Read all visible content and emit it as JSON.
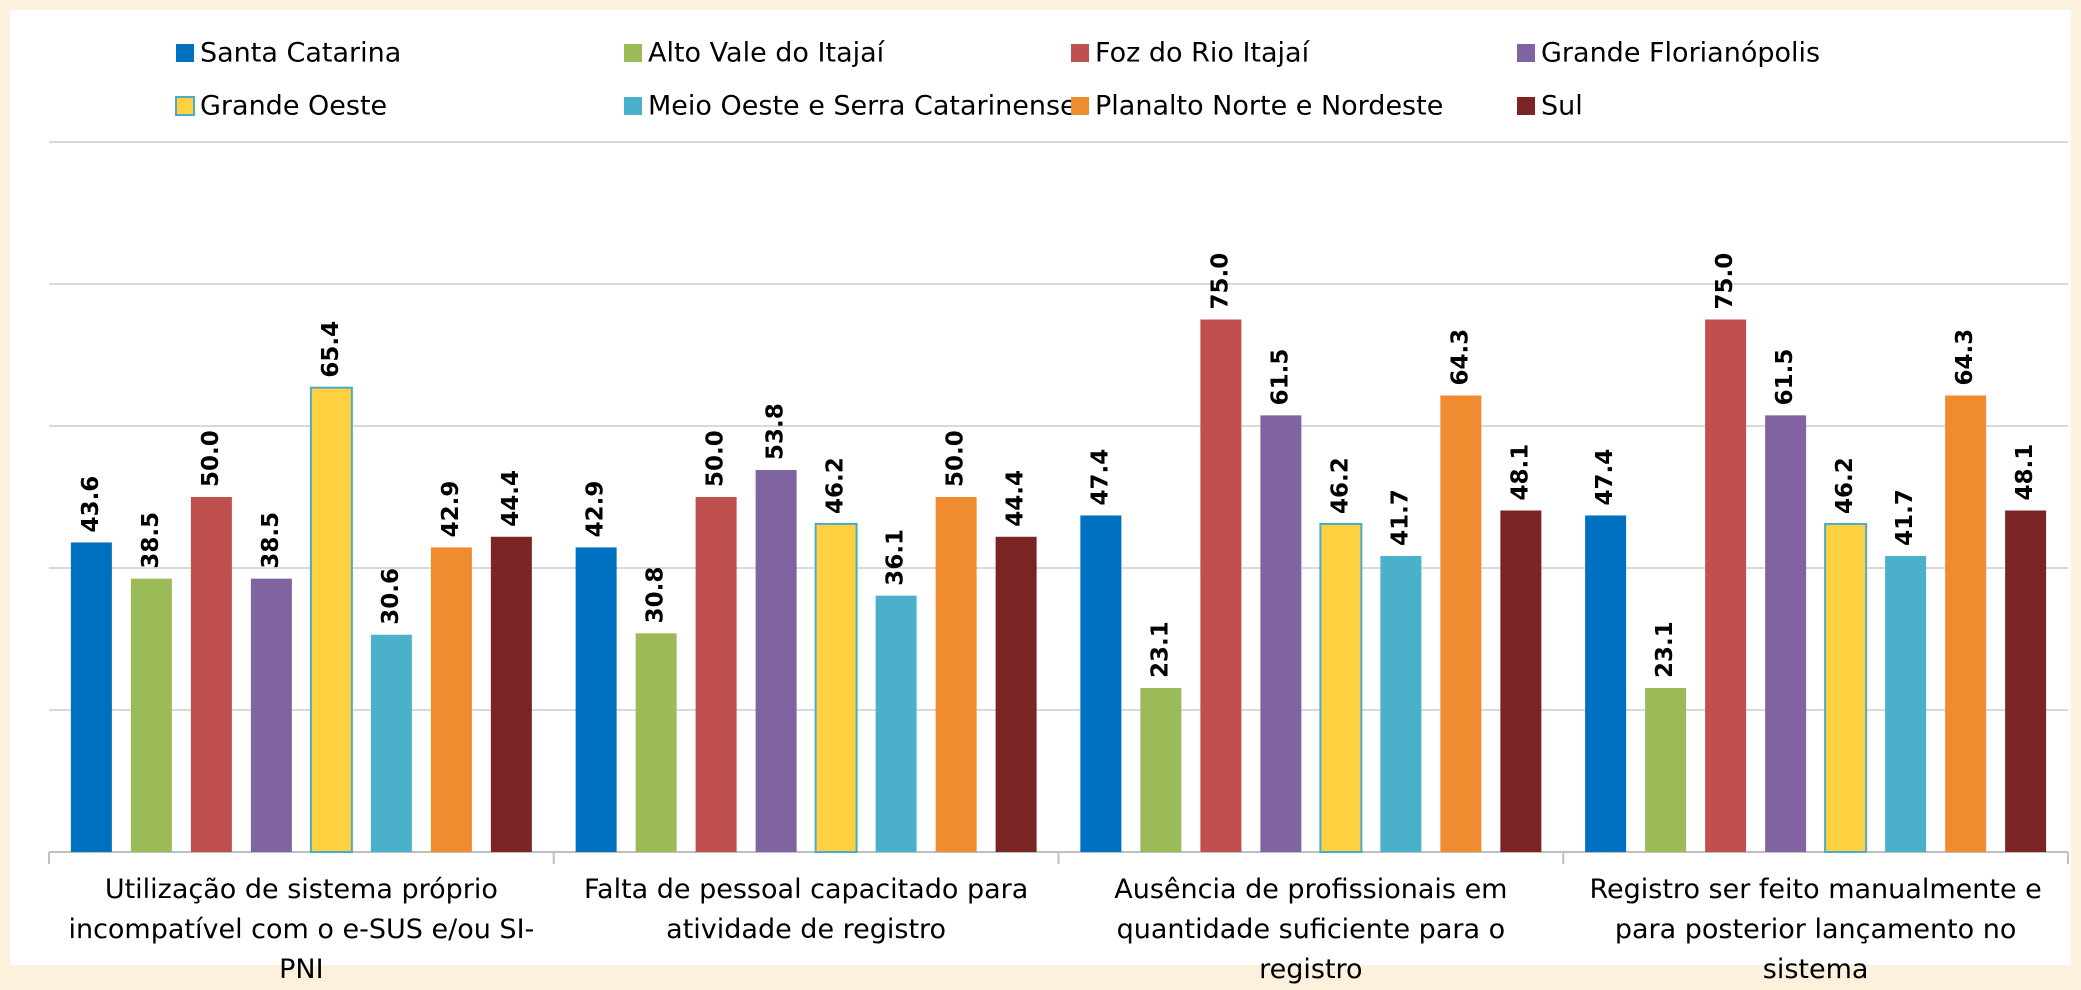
{
  "chart_data": {
    "type": "bar",
    "categories": [
      "Utilização de sistema próprio incompatível com o e-SUS e/ou SI-PNI",
      "Falta de pessoal capacitado para atividade de registro",
      "Ausência de profissionais em quantidade suficiente para o registro",
      "Registro ser feito manualmente e para posterior lançamento no sistema"
    ],
    "series": [
      {
        "name": "Santa Catarina",
        "color": "#0070c0",
        "values": [
          43.6,
          42.9,
          47.4,
          47.4
        ],
        "value_labels": [
          "43.6",
          "42.9",
          "47.4",
          "47.4"
        ]
      },
      {
        "name": "Alto Vale do Itajaí",
        "color": "#9bbb59",
        "values": [
          38.5,
          30.8,
          23.1,
          23.1
        ],
        "value_labels": [
          "38.5",
          "30.8",
          "23.1",
          "23.1"
        ]
      },
      {
        "name": "Foz do Rio Itajaí",
        "color": "#c0504d",
        "values": [
          50,
          50,
          75,
          75
        ],
        "value_labels": [
          "50.0",
          "50.0",
          "75.0",
          "75.0"
        ]
      },
      {
        "name": "Grande Florianópolis",
        "color": "#8064a2",
        "values": [
          38.5,
          53.8,
          61.5,
          61.5
        ],
        "value_labels": [
          "38.5",
          "53.8",
          "61.5",
          "61.5"
        ]
      },
      {
        "name": "Grande Oeste",
        "color": "#ffd040",
        "edgecolor": "#4bacc6",
        "values": [
          65.4,
          46.2,
          46.2,
          46.2
        ],
        "value_labels": [
          "65.4",
          "46.2",
          "46.2",
          "46.2"
        ]
      },
      {
        "name": "Meio Oeste e Serra Catarinense",
        "color": "#4bb1cb",
        "values": [
          30.6,
          36.1,
          41.7,
          41.7
        ],
        "value_labels": [
          "30.6",
          "36.1",
          "41.7",
          "41.7"
        ]
      },
      {
        "name": "Planalto Norte e Nordeste",
        "color": "#f08c30",
        "values": [
          42.9,
          50,
          64.3,
          64.3
        ],
        "value_labels": [
          "42.9",
          "50.0",
          "64.3",
          "64.3"
        ]
      },
      {
        "name": "Sul",
        "color": "#7b2424",
        "values": [
          44.4,
          44.4,
          48.1,
          48.1
        ],
        "value_labels": [
          "44.4",
          "44.4",
          "48.1",
          "48.1"
        ]
      }
    ],
    "ylim": [
      0,
      100
    ],
    "yticks": [
      0,
      20,
      40,
      60,
      80,
      100
    ],
    "grid": true
  }
}
